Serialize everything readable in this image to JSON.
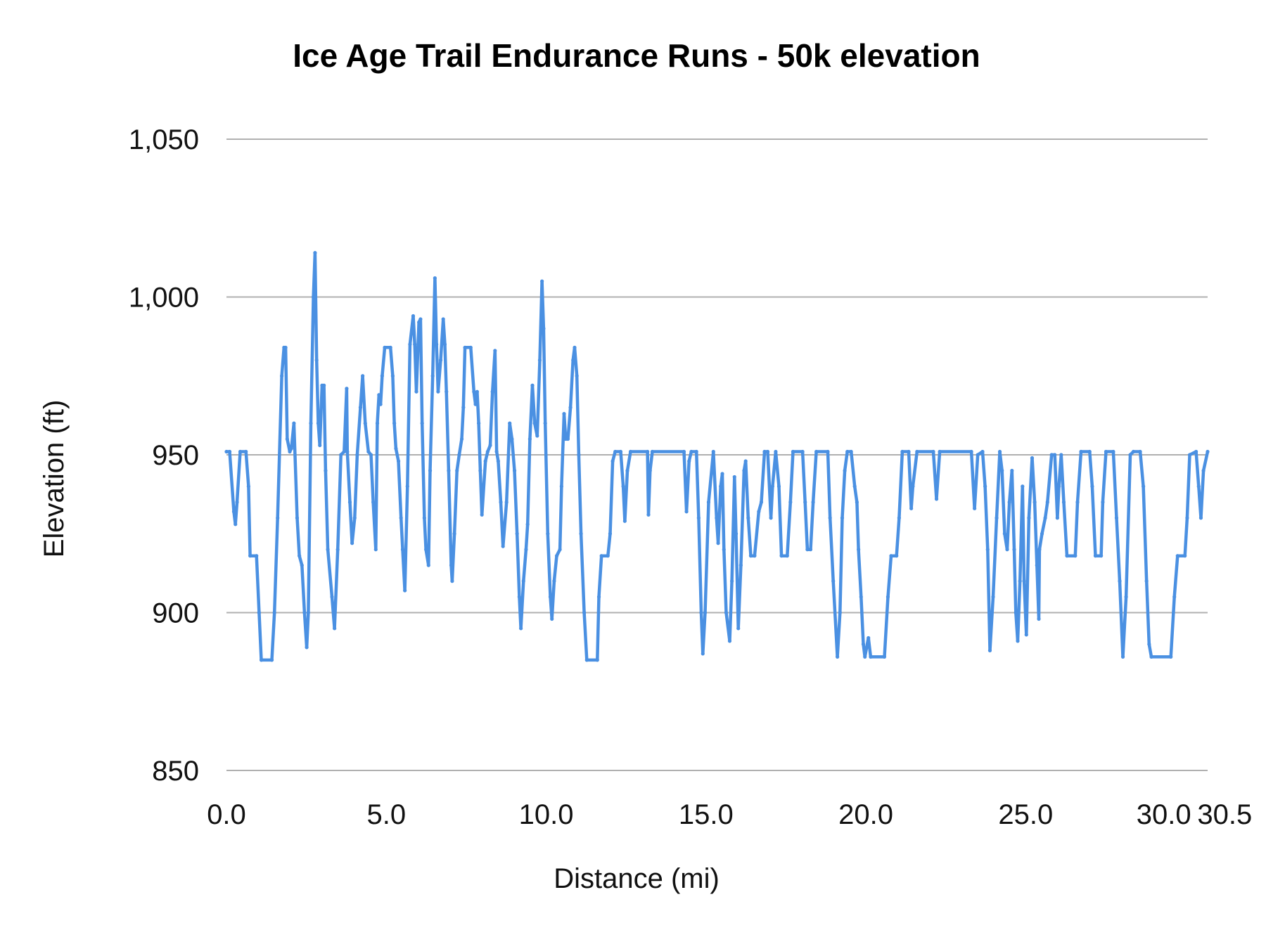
{
  "chart_data": {
    "type": "line",
    "title": "Ice Age Trail Endurance Runs - 50k elevation",
    "xlabel": "Distance (mi)",
    "ylabel": "Elevation (ft)",
    "xlim": [
      0,
      30.69
    ],
    "ylim": [
      850,
      1050
    ],
    "x_ticks": [
      "0.0",
      "5.0",
      "10.0",
      "15.0",
      "20.0",
      "25.0",
      "30.0",
      "30.5"
    ],
    "x_tick_values": [
      0,
      5,
      10,
      15,
      20,
      25,
      30,
      30.5
    ],
    "y_ticks": [
      "850",
      "900",
      "950",
      "1,000",
      "1,050"
    ],
    "y_tick_values": [
      850,
      900,
      950,
      1000,
      1050
    ],
    "grid": "horizontal",
    "legend": "none",
    "line_color": "#4a90e2",
    "grid_color": "#b0b0b0",
    "points": [
      [
        0,
        951
      ],
      [
        0.1,
        951
      ],
      [
        0.23,
        932
      ],
      [
        0.28,
        928
      ],
      [
        0.33,
        935
      ],
      [
        0.43,
        951
      ],
      [
        0.61,
        951
      ],
      [
        0.69,
        940
      ],
      [
        0.74,
        918
      ],
      [
        0.94,
        918
      ],
      [
        1.02,
        900
      ],
      [
        1.09,
        885
      ],
      [
        1.42,
        885
      ],
      [
        1.5,
        900
      ],
      [
        1.6,
        930
      ],
      [
        1.73,
        975
      ],
      [
        1.8,
        984
      ],
      [
        1.85,
        984
      ],
      [
        1.9,
        955
      ],
      [
        1.98,
        951
      ],
      [
        2.03,
        952
      ],
      [
        2.11,
        960
      ],
      [
        2.21,
        930
      ],
      [
        2.28,
        918
      ],
      [
        2.36,
        915
      ],
      [
        2.44,
        900
      ],
      [
        2.51,
        889
      ],
      [
        2.56,
        900
      ],
      [
        2.64,
        960
      ],
      [
        2.72,
        1000
      ],
      [
        2.77,
        1014
      ],
      [
        2.82,
        980
      ],
      [
        2.87,
        960
      ],
      [
        2.92,
        953
      ],
      [
        2.99,
        972
      ],
      [
        3.05,
        972
      ],
      [
        3.1,
        945
      ],
      [
        3.17,
        920
      ],
      [
        3.3,
        905
      ],
      [
        3.38,
        895
      ],
      [
        3.48,
        920
      ],
      [
        3.58,
        950
      ],
      [
        3.68,
        951
      ],
      [
        3.76,
        971
      ],
      [
        3.78,
        951
      ],
      [
        3.86,
        935
      ],
      [
        3.93,
        922
      ],
      [
        4.01,
        930
      ],
      [
        4.09,
        950
      ],
      [
        4.19,
        965
      ],
      [
        4.26,
        975
      ],
      [
        4.34,
        960
      ],
      [
        4.44,
        951
      ],
      [
        4.52,
        950
      ],
      [
        4.59,
        935
      ],
      [
        4.67,
        920
      ],
      [
        4.72,
        960
      ],
      [
        4.77,
        969
      ],
      [
        4.82,
        966
      ],
      [
        4.87,
        975
      ],
      [
        4.95,
        984
      ],
      [
        5.13,
        984
      ],
      [
        5.2,
        975
      ],
      [
        5.25,
        960
      ],
      [
        5.3,
        952
      ],
      [
        5.38,
        948
      ],
      [
        5.46,
        930
      ],
      [
        5.51,
        920
      ],
      [
        5.58,
        907
      ],
      [
        5.66,
        940
      ],
      [
        5.74,
        985
      ],
      [
        5.84,
        994
      ],
      [
        5.89,
        985
      ],
      [
        5.94,
        970
      ],
      [
        6.02,
        992
      ],
      [
        6.07,
        993
      ],
      [
        6.12,
        960
      ],
      [
        6.19,
        930
      ],
      [
        6.24,
        920
      ],
      [
        6.32,
        915
      ],
      [
        6.37,
        945
      ],
      [
        6.45,
        975
      ],
      [
        6.52,
        1006
      ],
      [
        6.57,
        985
      ],
      [
        6.62,
        970
      ],
      [
        6.7,
        980
      ],
      [
        6.78,
        993
      ],
      [
        6.83,
        985
      ],
      [
        6.88,
        970
      ],
      [
        6.95,
        945
      ],
      [
        7.03,
        915
      ],
      [
        7.06,
        910
      ],
      [
        7.13,
        925
      ],
      [
        7.21,
        945
      ],
      [
        7.28,
        950
      ],
      [
        7.36,
        955
      ],
      [
        7.41,
        965
      ],
      [
        7.46,
        984
      ],
      [
        7.64,
        984
      ],
      [
        7.74,
        970
      ],
      [
        7.79,
        966
      ],
      [
        7.84,
        970
      ],
      [
        7.89,
        960
      ],
      [
        7.94,
        945
      ],
      [
        7.99,
        931
      ],
      [
        8.1,
        948
      ],
      [
        8.17,
        951
      ],
      [
        8.25,
        953
      ],
      [
        8.32,
        970
      ],
      [
        8.4,
        983
      ],
      [
        8.45,
        951
      ],
      [
        8.5,
        948
      ],
      [
        8.58,
        935
      ],
      [
        8.65,
        921
      ],
      [
        8.76,
        935
      ],
      [
        8.86,
        960
      ],
      [
        8.93,
        955
      ],
      [
        9.01,
        945
      ],
      [
        9.09,
        925
      ],
      [
        9.16,
        905
      ],
      [
        9.21,
        895
      ],
      [
        9.29,
        910
      ],
      [
        9.37,
        920
      ],
      [
        9.42,
        928
      ],
      [
        9.49,
        955
      ],
      [
        9.57,
        972
      ],
      [
        9.64,
        960
      ],
      [
        9.72,
        956
      ],
      [
        9.8,
        980
      ],
      [
        9.87,
        1005
      ],
      [
        9.92,
        990
      ],
      [
        9.97,
        960
      ],
      [
        10.05,
        925
      ],
      [
        10.13,
        905
      ],
      [
        10.18,
        898
      ],
      [
        10.25,
        910
      ],
      [
        10.33,
        918
      ],
      [
        10.43,
        920
      ],
      [
        10.48,
        940
      ],
      [
        10.56,
        963
      ],
      [
        10.61,
        955
      ],
      [
        10.68,
        955
      ],
      [
        10.76,
        965
      ],
      [
        10.84,
        980
      ],
      [
        10.89,
        984
      ],
      [
        10.96,
        975
      ],
      [
        11.02,
        950
      ],
      [
        11.09,
        925
      ],
      [
        11.19,
        900
      ],
      [
        11.27,
        885
      ],
      [
        11.6,
        885
      ],
      [
        11.65,
        905
      ],
      [
        11.73,
        918
      ],
      [
        11.93,
        918
      ],
      [
        12.0,
        925
      ],
      [
        12.08,
        948
      ],
      [
        12.16,
        951
      ],
      [
        12.33,
        951
      ],
      [
        12.41,
        940
      ],
      [
        12.46,
        929
      ],
      [
        12.54,
        945
      ],
      [
        12.64,
        951
      ],
      [
        13.17,
        951
      ],
      [
        13.2,
        931
      ],
      [
        13.25,
        945
      ],
      [
        13.32,
        951
      ],
      [
        14.31,
        951
      ],
      [
        14.39,
        932
      ],
      [
        14.47,
        948
      ],
      [
        14.54,
        951
      ],
      [
        14.7,
        951
      ],
      [
        14.77,
        930
      ],
      [
        14.85,
        900
      ],
      [
        14.9,
        887
      ],
      [
        14.97,
        900
      ],
      [
        15.08,
        935
      ],
      [
        15.23,
        951
      ],
      [
        15.33,
        930
      ],
      [
        15.38,
        922
      ],
      [
        15.46,
        940
      ],
      [
        15.51,
        944
      ],
      [
        15.56,
        920
      ],
      [
        15.63,
        900
      ],
      [
        15.74,
        891
      ],
      [
        15.81,
        910
      ],
      [
        15.89,
        943
      ],
      [
        15.94,
        925
      ],
      [
        16.01,
        895
      ],
      [
        16.09,
        915
      ],
      [
        16.19,
        945
      ],
      [
        16.24,
        948
      ],
      [
        16.32,
        930
      ],
      [
        16.4,
        918
      ],
      [
        16.52,
        918
      ],
      [
        16.65,
        932
      ],
      [
        16.73,
        935
      ],
      [
        16.83,
        951
      ],
      [
        16.93,
        951
      ],
      [
        17.03,
        930
      ],
      [
        17.08,
        940
      ],
      [
        17.18,
        951
      ],
      [
        17.28,
        940
      ],
      [
        17.36,
        918
      ],
      [
        17.54,
        918
      ],
      [
        17.64,
        935
      ],
      [
        17.72,
        951
      ],
      [
        18.02,
        951
      ],
      [
        18.1,
        935
      ],
      [
        18.17,
        920
      ],
      [
        18.27,
        920
      ],
      [
        18.35,
        935
      ],
      [
        18.45,
        951
      ],
      [
        18.81,
        951
      ],
      [
        18.88,
        930
      ],
      [
        18.98,
        910
      ],
      [
        19.11,
        886
      ],
      [
        19.19,
        900
      ],
      [
        19.26,
        930
      ],
      [
        19.34,
        945
      ],
      [
        19.42,
        951
      ],
      [
        19.54,
        951
      ],
      [
        19.65,
        940
      ],
      [
        19.72,
        935
      ],
      [
        19.77,
        920
      ],
      [
        19.85,
        905
      ],
      [
        19.92,
        890
      ],
      [
        19.97,
        886
      ],
      [
        20.08,
        892
      ],
      [
        20.15,
        886
      ],
      [
        20.58,
        886
      ],
      [
        20.69,
        905
      ],
      [
        20.79,
        918
      ],
      [
        20.96,
        918
      ],
      [
        21.04,
        930
      ],
      [
        21.14,
        951
      ],
      [
        21.34,
        951
      ],
      [
        21.42,
        933
      ],
      [
        21.47,
        940
      ],
      [
        21.6,
        951
      ],
      [
        22.11,
        951
      ],
      [
        22.21,
        936
      ],
      [
        22.31,
        951
      ],
      [
        23.3,
        951
      ],
      [
        23.4,
        933
      ],
      [
        23.5,
        950
      ],
      [
        23.65,
        951
      ],
      [
        23.73,
        940
      ],
      [
        23.81,
        920
      ],
      [
        23.88,
        888
      ],
      [
        23.98,
        905
      ],
      [
        24.09,
        930
      ],
      [
        24.19,
        951
      ],
      [
        24.26,
        945
      ],
      [
        24.34,
        925
      ],
      [
        24.42,
        920
      ],
      [
        24.49,
        935
      ],
      [
        24.57,
        945
      ],
      [
        24.64,
        920
      ],
      [
        24.69,
        900
      ],
      [
        24.75,
        891
      ],
      [
        24.82,
        910
      ],
      [
        24.9,
        940
      ],
      [
        24.95,
        910
      ],
      [
        25.02,
        893
      ],
      [
        25.1,
        930
      ],
      [
        25.2,
        949
      ],
      [
        25.28,
        935
      ],
      [
        25.35,
        915
      ],
      [
        25.41,
        898
      ],
      [
        25.43,
        920
      ],
      [
        25.51,
        925
      ],
      [
        25.61,
        930
      ],
      [
        25.68,
        935
      ],
      [
        25.81,
        950
      ],
      [
        25.91,
        950
      ],
      [
        25.99,
        930
      ],
      [
        26.04,
        940
      ],
      [
        26.11,
        950
      ],
      [
        26.19,
        935
      ],
      [
        26.29,
        918
      ],
      [
        26.55,
        918
      ],
      [
        26.62,
        935
      ],
      [
        26.73,
        951
      ],
      [
        27.0,
        951
      ],
      [
        27.08,
        940
      ],
      [
        27.18,
        918
      ],
      [
        27.36,
        918
      ],
      [
        27.41,
        935
      ],
      [
        27.51,
        951
      ],
      [
        27.74,
        951
      ],
      [
        27.84,
        930
      ],
      [
        27.94,
        910
      ],
      [
        28.04,
        886
      ],
      [
        28.14,
        905
      ],
      [
        28.27,
        950
      ],
      [
        28.37,
        951
      ],
      [
        28.58,
        951
      ],
      [
        28.68,
        940
      ],
      [
        28.78,
        910
      ],
      [
        28.86,
        890
      ],
      [
        28.93,
        886
      ],
      [
        29.54,
        886
      ],
      [
        29.65,
        905
      ],
      [
        29.75,
        918
      ],
      [
        29.98,
        918
      ],
      [
        30.05,
        930
      ],
      [
        30.13,
        950
      ],
      [
        30.33,
        951
      ],
      [
        30.41,
        940
      ],
      [
        30.48,
        930
      ],
      [
        30.56,
        945
      ],
      [
        30.69,
        951
      ]
    ]
  }
}
